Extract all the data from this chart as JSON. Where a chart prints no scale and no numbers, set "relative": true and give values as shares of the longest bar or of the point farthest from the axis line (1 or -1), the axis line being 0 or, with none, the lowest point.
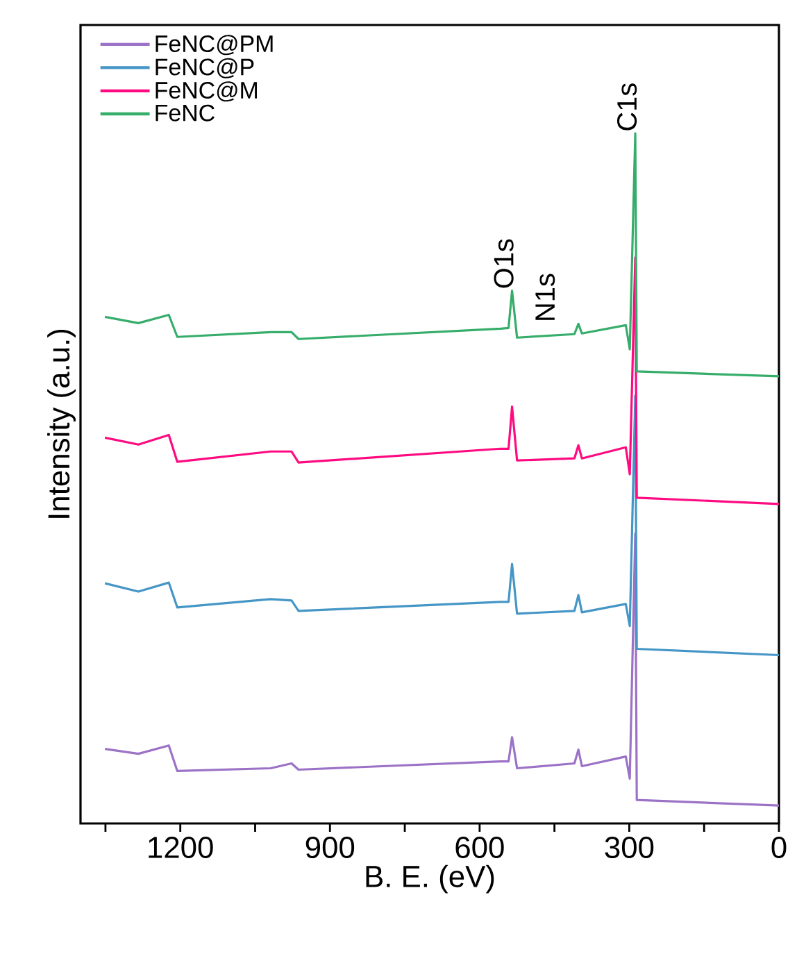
{
  "chart_data": {
    "type": "line",
    "xlabel": "B. E. (eV)",
    "ylabel": "Intensity (a.u.)",
    "relative": true,
    "legend": "top left",
    "grid": false,
    "marker": "none",
    "line_style": "solid",
    "xlim": [
      1400,
      0
    ],
    "xticks": [
      {
        "value": 1350,
        "label": null
      },
      1200,
      {
        "value": 1050,
        "label": null
      },
      900,
      {
        "value": 750,
        "label": null
      },
      600,
      {
        "value": 450,
        "label": null
      },
      300,
      {
        "value": 150,
        "label": null
      },
      0
    ],
    "x": [
      1351,
      1284,
      1223,
      1206,
      1019,
      977,
      963,
      558,
      542,
      535,
      525,
      410,
      402,
      395,
      307,
      299,
      288,
      285,
      0
    ],
    "series": [
      {
        "name": "FeNC@PM",
        "color": "#9b72c6",
        "values": [
          0.108,
          0.101,
          0.113,
          0.076,
          0.08,
          0.087,
          0.078,
          0.09,
          0.09,
          0.125,
          0.08,
          0.087,
          0.107,
          0.083,
          0.097,
          0.065,
          0.42,
          0.034,
          0.026
        ]
      },
      {
        "name": "FeNC@P",
        "color": "#4596c6",
        "values": [
          0.348,
          0.336,
          0.349,
          0.313,
          0.325,
          0.323,
          0.308,
          0.321,
          0.321,
          0.376,
          0.304,
          0.308,
          0.331,
          0.306,
          0.318,
          0.286,
          0.62,
          0.253,
          0.244
        ]
      },
      {
        "name": "FeNC@M",
        "color": "#ff0a80",
        "values": [
          0.559,
          0.549,
          0.563,
          0.524,
          0.539,
          0.539,
          0.523,
          0.543,
          0.543,
          0.604,
          0.526,
          0.529,
          0.548,
          0.529,
          0.545,
          0.506,
          0.82,
          0.472,
          0.463
        ]
      },
      {
        "name": "FeNC",
        "color": "#36ad6a",
        "values": [
          0.734,
          0.725,
          0.737,
          0.705,
          0.712,
          0.712,
          0.702,
          0.717,
          0.718,
          0.772,
          0.704,
          0.709,
          0.724,
          0.71,
          0.722,
          0.687,
          1.0,
          0.655,
          0.648
        ]
      }
    ],
    "annotations": [
      {
        "text": "O1s",
        "x": 535,
        "y": 0.772
      },
      {
        "text": "N1s",
        "x": 402,
        "y": 0.724
      },
      {
        "text": "C1s",
        "x": 288,
        "y": 1.0
      }
    ]
  }
}
